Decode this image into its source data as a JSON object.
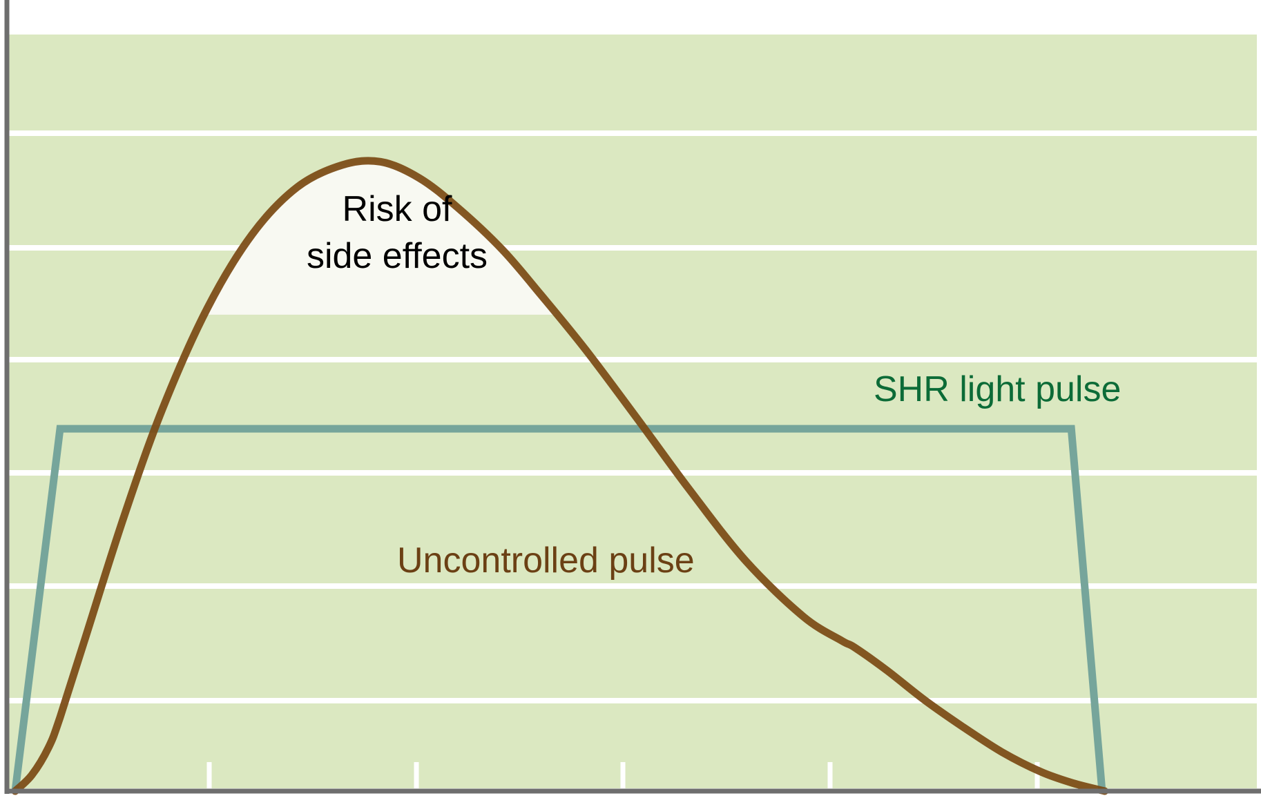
{
  "chart_data": {
    "type": "line",
    "title": "",
    "xlabel": "",
    "ylabel": "",
    "xlim": [
      0,
      100
    ],
    "ylim": [
      0,
      100
    ],
    "grid": true,
    "background_color": "#dbe8c1",
    "series": [
      {
        "name": "Uncontrolled pulse",
        "color": "#7b4a14",
        "x": [
          0,
          1.3,
          2.6,
          3.5,
          5.5,
          8.5,
          11.5,
          15,
          18.5,
          22,
          25.5,
          28.5,
          31.5,
          34.5,
          38,
          41,
          44.5,
          48.5,
          52.5,
          57,
          61.5,
          64.5,
          65.5,
          68,
          71,
          74,
          77,
          80,
          82.5,
          85
        ],
        "y": [
          0,
          2.4,
          6.5,
          11,
          23,
          41,
          57,
          72,
          83,
          90,
          93.3,
          93.8,
          91.4,
          87,
          80.7,
          74,
          65.8,
          55.6,
          45.2,
          34.3,
          26,
          22.4,
          21.4,
          18,
          13.5,
          9.5,
          5.8,
          2.9,
          1.2,
          0
        ]
      },
      {
        "name": "SHR light pulse",
        "color": "#76a59b",
        "x": [
          0,
          3.5,
          82.4,
          84.8
        ],
        "y": [
          0,
          54,
          54,
          0
        ]
      }
    ],
    "annotations": [
      {
        "text_lines": [
          "Risk of",
          "side effects"
        ],
        "color": "#000000",
        "x": 30.5,
        "y": 80
      },
      {
        "text": "SHR light pulse",
        "color": "#0c6b37",
        "x": 79.5,
        "y": 59.5
      },
      {
        "text": "Uncontrolled pulse",
        "color": "#6b4014",
        "x": 43.8,
        "y": 33.3
      }
    ],
    "highlight_region": {
      "name": "Risk of side effects",
      "y_threshold": 71,
      "fill": "#f8f9f2"
    }
  }
}
